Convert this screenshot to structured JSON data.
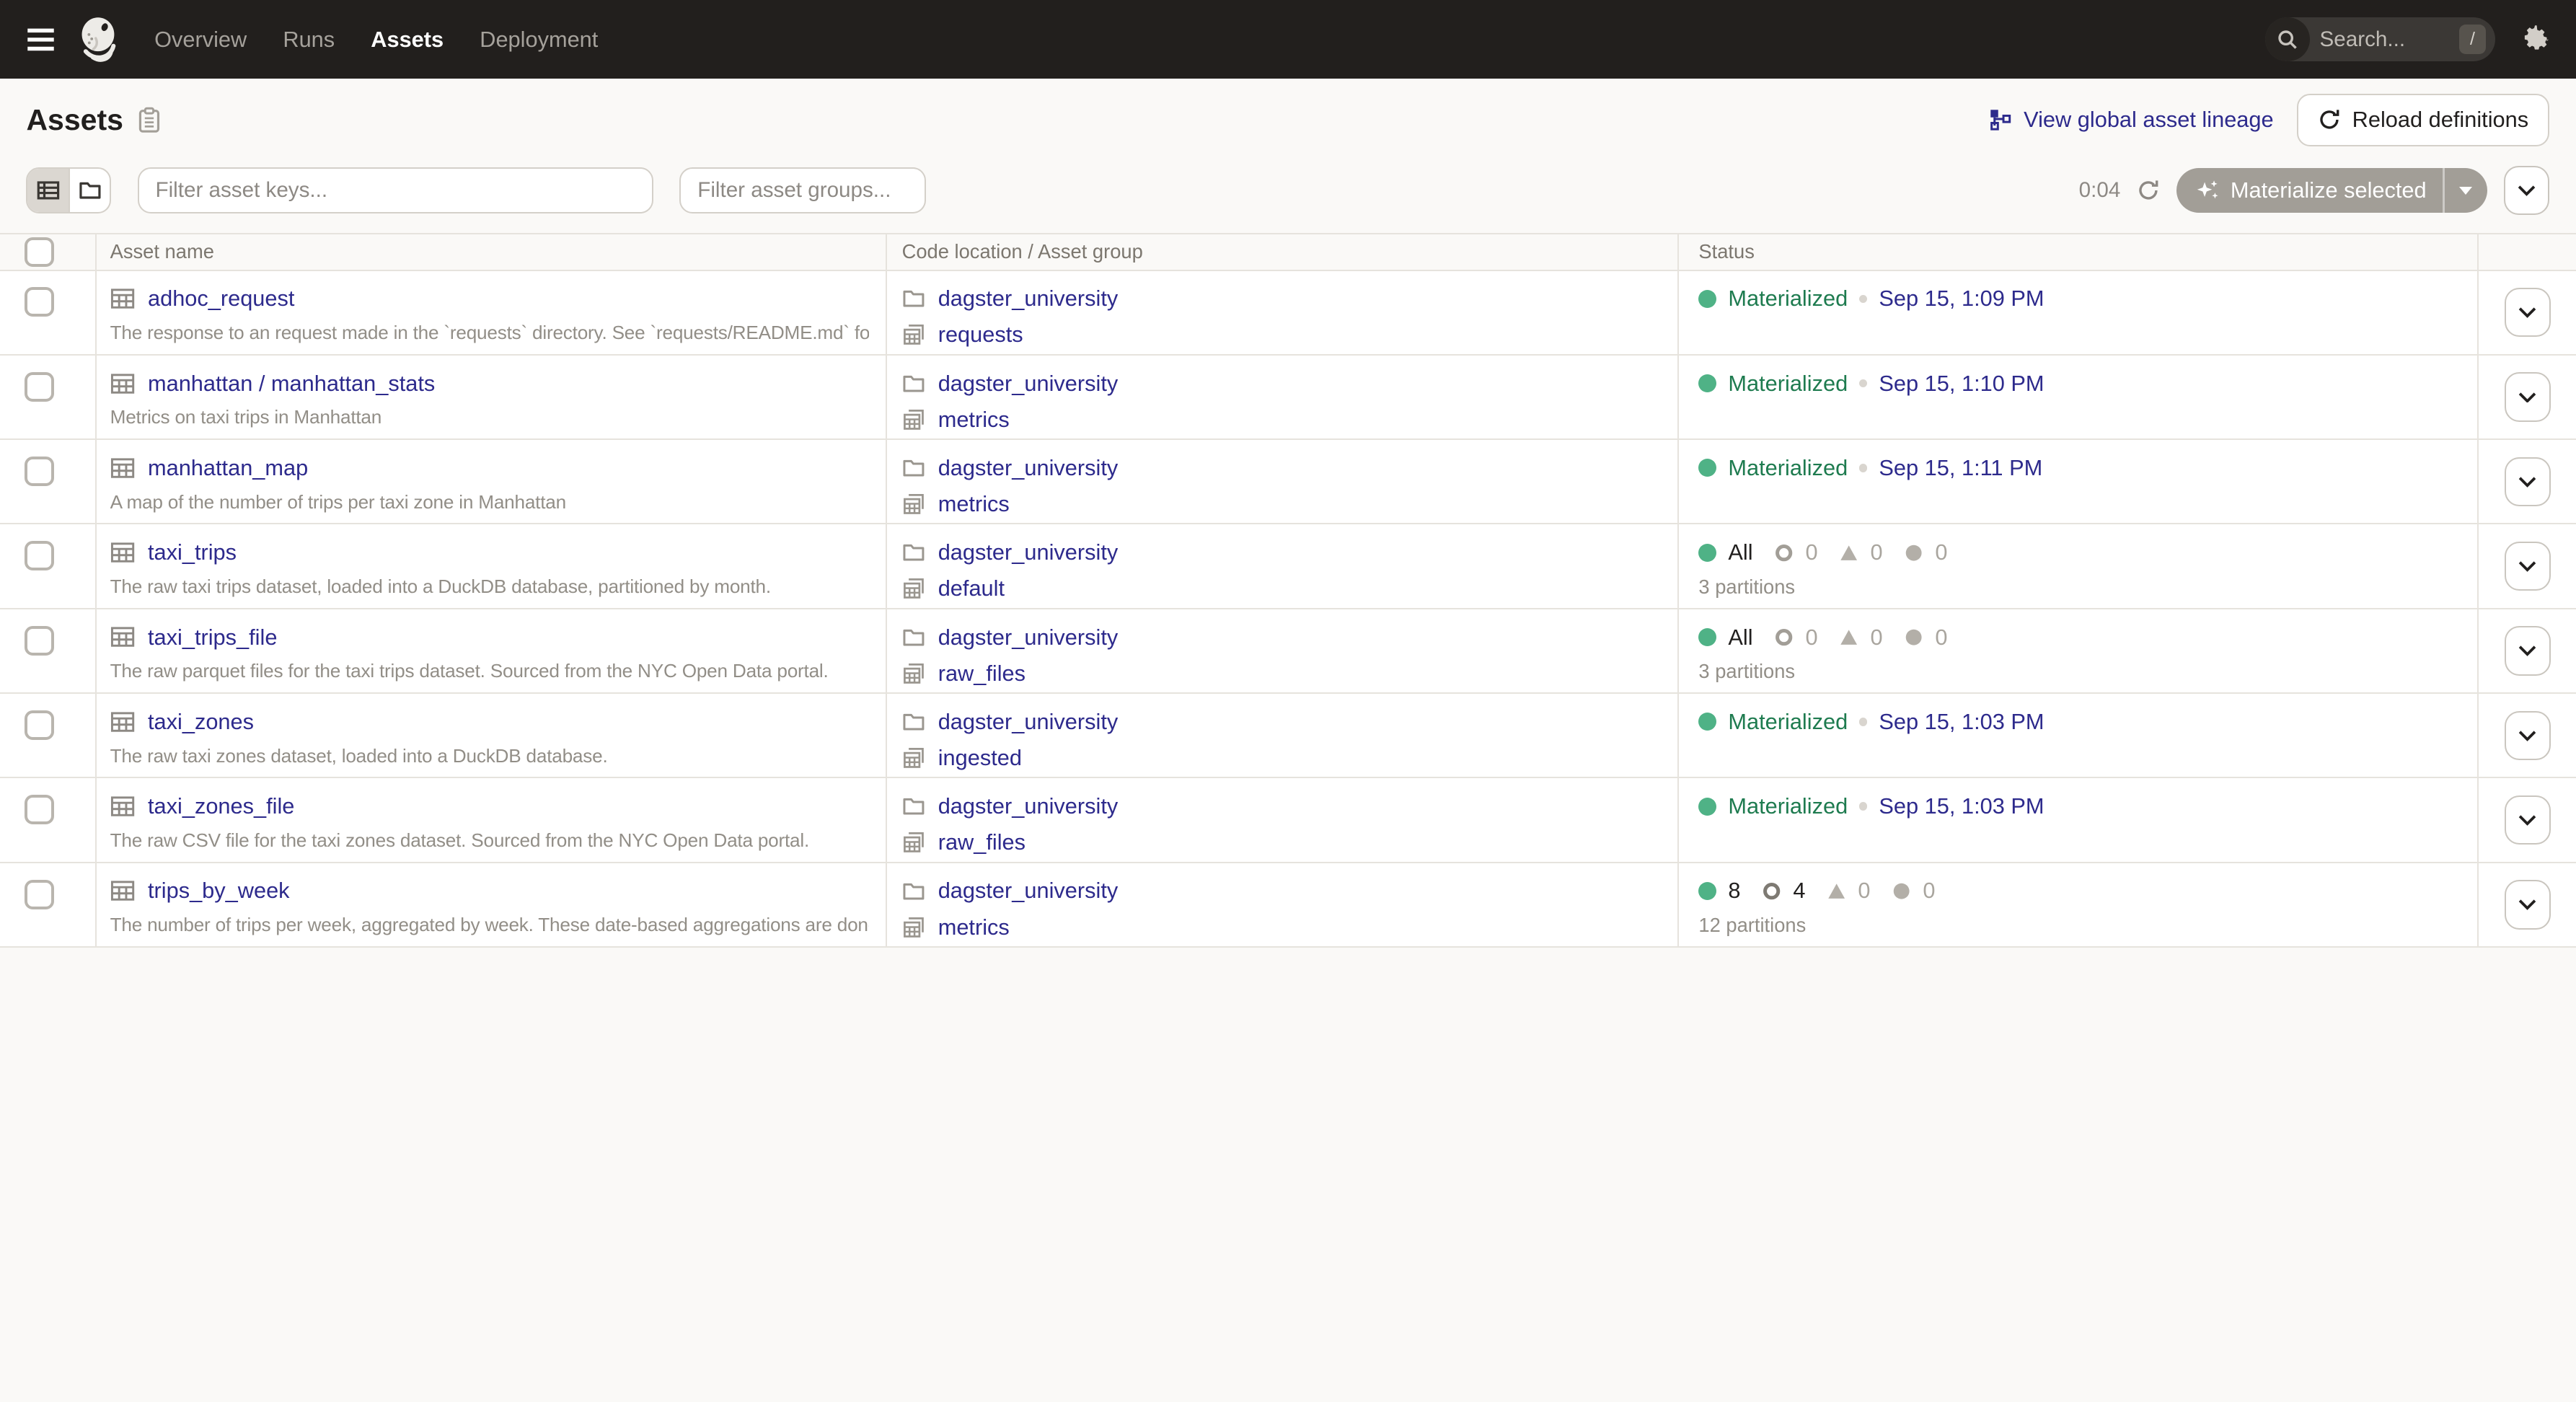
{
  "topnav": {
    "items": [
      {
        "label": "Overview",
        "active": false
      },
      {
        "label": "Runs",
        "active": false
      },
      {
        "label": "Assets",
        "active": true
      },
      {
        "label": "Deployment",
        "active": false
      }
    ],
    "search_placeholder": "Search...",
    "search_shortcut": "/"
  },
  "header": {
    "title": "Assets",
    "lineage_link_label": "View global asset lineage",
    "reload_button_label": "Reload definitions"
  },
  "toolbar": {
    "filter_keys_placeholder": "Filter asset keys...",
    "filter_groups_placeholder": "Filter asset groups...",
    "timer": "0:04",
    "materialize_label": "Materialize selected"
  },
  "table": {
    "columns": {
      "name": "Asset name",
      "location": "Code location / Asset group",
      "status": "Status"
    },
    "rows": [
      {
        "name": "adhoc_request",
        "description": "The response to an request made in the `requests` directory. See `requests/README.md` for more i...",
        "location": "dagster_university",
        "group": "requests",
        "status": {
          "type": "materialized",
          "label": "Materialized",
          "timestamp": "Sep 15, 1:09 PM"
        }
      },
      {
        "name": "manhattan / manhattan_stats",
        "description": "Metrics on taxi trips in Manhattan",
        "location": "dagster_university",
        "group": "metrics",
        "status": {
          "type": "materialized",
          "label": "Materialized",
          "timestamp": "Sep 15, 1:10 PM"
        }
      },
      {
        "name": "manhattan_map",
        "description": "A map of the number of trips per taxi zone in Manhattan",
        "location": "dagster_university",
        "group": "metrics",
        "status": {
          "type": "materialized",
          "label": "Materialized",
          "timestamp": "Sep 15, 1:11 PM"
        }
      },
      {
        "name": "taxi_trips",
        "description": "The raw taxi trips dataset, loaded into a DuckDB database, partitioned by month.",
        "location": "dagster_university",
        "group": "default",
        "status": {
          "type": "partitioned",
          "materialized": "All",
          "failed": "0",
          "in_progress": "0",
          "missing": "0",
          "partitions": "3 partitions"
        }
      },
      {
        "name": "taxi_trips_file",
        "description": "The raw parquet files for the taxi trips dataset. Sourced from the NYC Open Data portal.",
        "location": "dagster_university",
        "group": "raw_files",
        "status": {
          "type": "partitioned",
          "materialized": "All",
          "failed": "0",
          "in_progress": "0",
          "missing": "0",
          "partitions": "3 partitions"
        }
      },
      {
        "name": "taxi_zones",
        "description": "The raw taxi zones dataset, loaded into a DuckDB database.",
        "location": "dagster_university",
        "group": "ingested",
        "status": {
          "type": "materialized",
          "label": "Materialized",
          "timestamp": "Sep 15, 1:03 PM"
        }
      },
      {
        "name": "taxi_zones_file",
        "description": "The raw CSV file for the taxi zones dataset. Sourced from the NYC Open Data portal.",
        "location": "dagster_university",
        "group": "raw_files",
        "status": {
          "type": "materialized",
          "label": "Materialized",
          "timestamp": "Sep 15, 1:03 PM"
        }
      },
      {
        "name": "trips_by_week",
        "description": "The number of trips per week, aggregated by week. These date-based aggregations are done in-me...",
        "location": "dagster_university",
        "group": "metrics",
        "status": {
          "type": "partitioned",
          "materialized": "8",
          "failed": "4",
          "in_progress": "0",
          "missing": "0",
          "partitions": "12 partitions"
        }
      }
    ]
  },
  "colors": {
    "topnav_bg": "#221F1D",
    "page_bg": "#FAF9F7",
    "link": "#2D2A8C",
    "green_text": "#1E7B4F",
    "green_dot": "#4FB286",
    "border": "#E6E3DD",
    "muted_text": "#928E87",
    "materialize_button_bg": "#A29E97"
  }
}
